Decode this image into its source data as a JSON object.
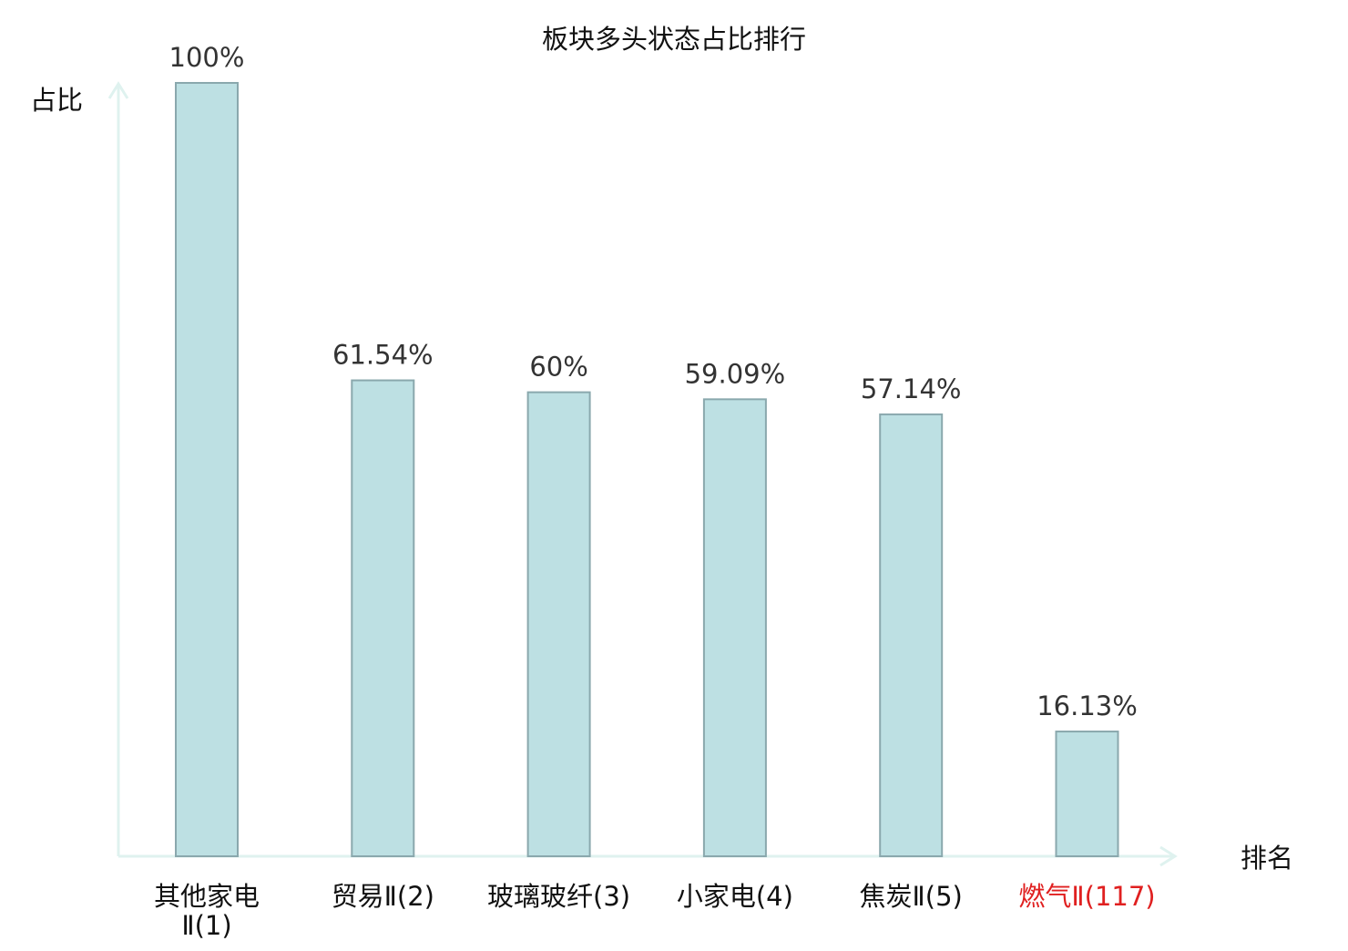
{
  "chart_data": {
    "type": "bar",
    "title": "板块多头状态占比排行",
    "ylabel": "占比",
    "xlabel": "排名",
    "ylim": [
      0,
      100
    ],
    "grid": false,
    "categories": [
      {
        "lines": [
          "其他家电",
          "Ⅱ(1)"
        ],
        "highlight": false
      },
      {
        "lines": [
          "贸易Ⅱ(2)"
        ],
        "highlight": false
      },
      {
        "lines": [
          "玻璃玻纤(3)"
        ],
        "highlight": false
      },
      {
        "lines": [
          "小家电(4)"
        ],
        "highlight": false
      },
      {
        "lines": [
          "焦炭Ⅱ(5)"
        ],
        "highlight": false
      },
      {
        "lines": [
          "燃气Ⅱ(117)"
        ],
        "highlight": true
      }
    ],
    "values": [
      100,
      61.54,
      60,
      59.09,
      57.14,
      16.13
    ],
    "value_labels": [
      "100%",
      "61.54%",
      "60%",
      "59.09%",
      "57.14%",
      "16.13%"
    ],
    "colors": {
      "bar_fill": "#bde0e3",
      "bar_stroke": "#8aa8ad",
      "axis": "#dff2ef",
      "text": "#333333",
      "category_text": "#111111",
      "highlight_text": "#e02020"
    }
  }
}
